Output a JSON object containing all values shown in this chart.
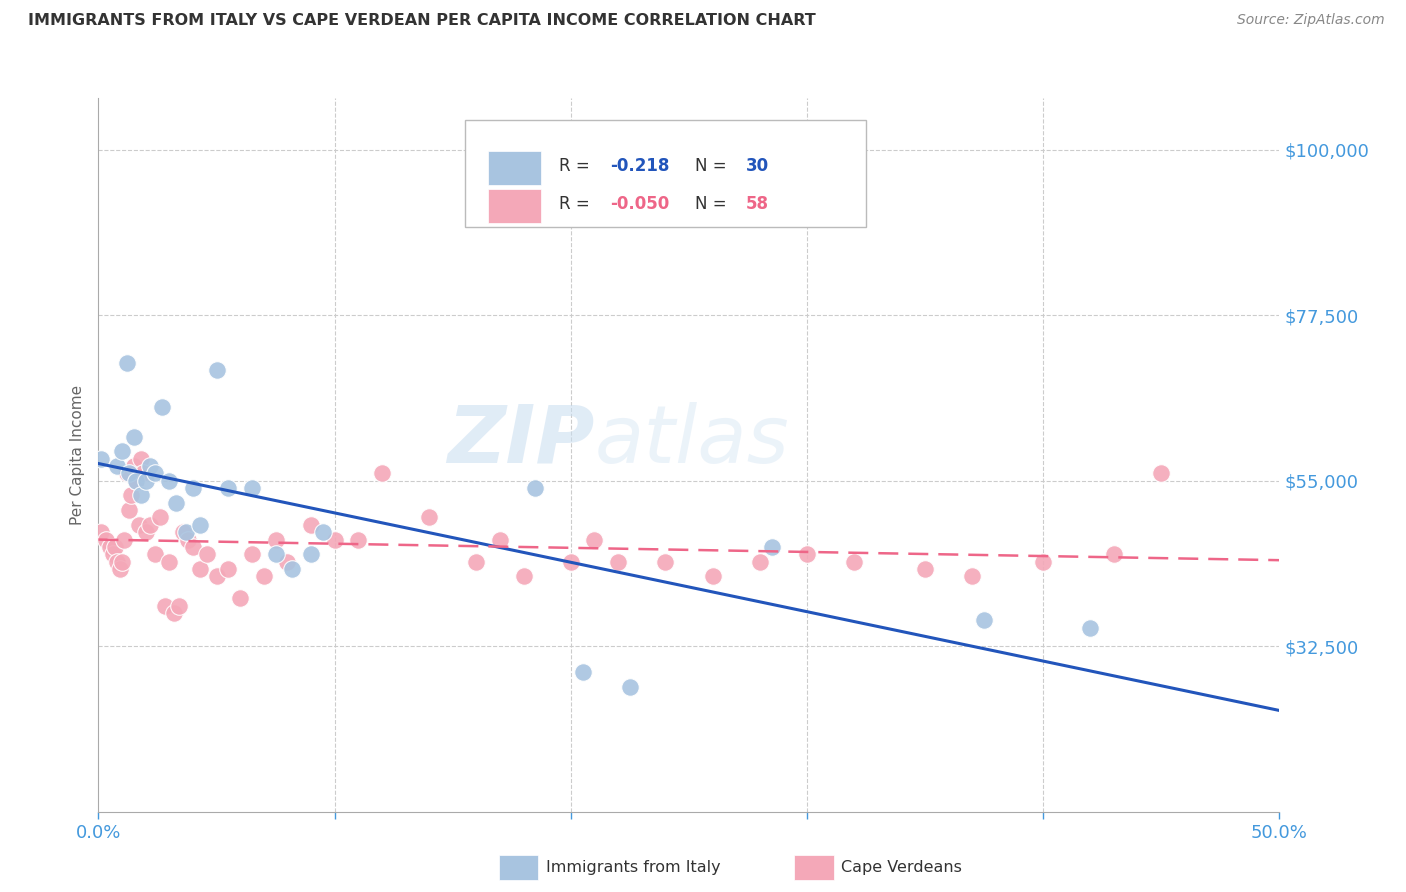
{
  "title": "IMMIGRANTS FROM ITALY VS CAPE VERDEAN PER CAPITA INCOME CORRELATION CHART",
  "source": "Source: ZipAtlas.com",
  "ylabel": "Per Capita Income",
  "xlim": [
    0.0,
    0.5
  ],
  "ylim": [
    10000,
    107000
  ],
  "watermark_zip": "ZIP",
  "watermark_atlas": "atlas",
  "legend_italy_r": "-0.218",
  "legend_italy_n": "30",
  "legend_cape_r": "-0.050",
  "legend_cape_n": "58",
  "italy_color": "#a8c4e0",
  "cape_color": "#f4a8b8",
  "italy_line_color": "#2255bb",
  "cape_line_color": "#ee6688",
  "italy_x": [
    0.001,
    0.008,
    0.01,
    0.012,
    0.013,
    0.015,
    0.016,
    0.018,
    0.02,
    0.022,
    0.024,
    0.027,
    0.03,
    0.033,
    0.037,
    0.04,
    0.043,
    0.05,
    0.055,
    0.065,
    0.075,
    0.082,
    0.09,
    0.095,
    0.185,
    0.205,
    0.225,
    0.285,
    0.375,
    0.42
  ],
  "italy_y": [
    58000,
    57000,
    59000,
    71000,
    56000,
    61000,
    55000,
    53000,
    55000,
    57000,
    56000,
    65000,
    55000,
    52000,
    48000,
    54000,
    49000,
    70000,
    54000,
    54000,
    45000,
    43000,
    45000,
    48000,
    54000,
    29000,
    27000,
    46000,
    36000,
    35000
  ],
  "cape_x": [
    0.001,
    0.003,
    0.005,
    0.006,
    0.007,
    0.008,
    0.009,
    0.01,
    0.011,
    0.012,
    0.013,
    0.014,
    0.015,
    0.016,
    0.017,
    0.018,
    0.019,
    0.02,
    0.022,
    0.024,
    0.026,
    0.028,
    0.03,
    0.032,
    0.034,
    0.036,
    0.038,
    0.04,
    0.043,
    0.046,
    0.05,
    0.055,
    0.06,
    0.065,
    0.07,
    0.075,
    0.08,
    0.09,
    0.1,
    0.11,
    0.12,
    0.14,
    0.16,
    0.17,
    0.18,
    0.2,
    0.21,
    0.22,
    0.24,
    0.26,
    0.28,
    0.3,
    0.32,
    0.35,
    0.37,
    0.4,
    0.43,
    0.45
  ],
  "cape_y": [
    48000,
    47000,
    46000,
    45000,
    46000,
    44000,
    43000,
    44000,
    47000,
    56000,
    51000,
    53000,
    57000,
    55000,
    49000,
    58000,
    56000,
    48000,
    49000,
    45000,
    50000,
    38000,
    44000,
    37000,
    38000,
    48000,
    47000,
    46000,
    43000,
    45000,
    42000,
    43000,
    39000,
    45000,
    42000,
    47000,
    44000,
    49000,
    47000,
    47000,
    56000,
    50000,
    44000,
    47000,
    42000,
    44000,
    47000,
    44000,
    44000,
    42000,
    44000,
    45000,
    44000,
    43000,
    42000,
    44000,
    45000,
    56000
  ],
  "background_color": "#ffffff",
  "grid_color": "#cccccc",
  "title_color": "#333333",
  "tick_color": "#4499dd",
  "ytick_vals": [
    32500,
    55000,
    77500,
    100000
  ],
  "ytick_labels": [
    "$32,500",
    "$55,000",
    "$77,500",
    "$100,000"
  ]
}
